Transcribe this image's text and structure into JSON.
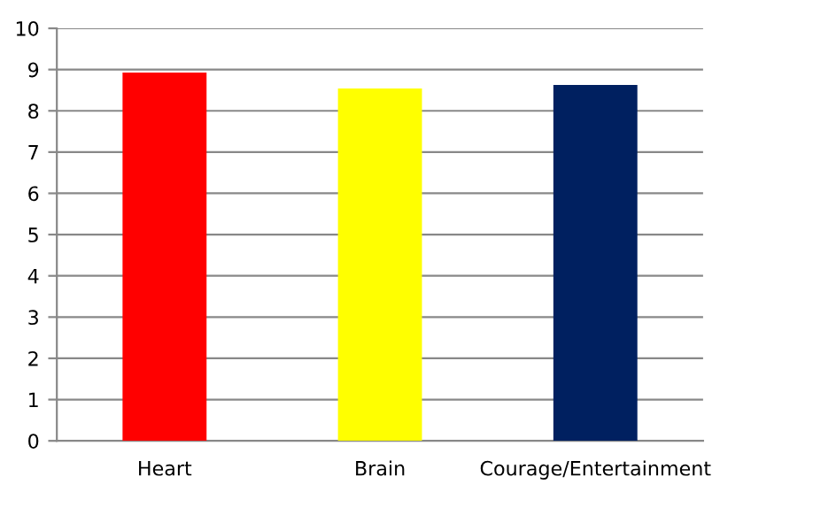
{
  "chart_data": {
    "type": "bar",
    "categories": [
      "Heart",
      "Brain",
      "Courage/Entertainment"
    ],
    "values": [
      8.93,
      8.54,
      8.63
    ],
    "colors": [
      "#ff0000",
      "#ffff00",
      "#002060"
    ],
    "ylim": [
      0,
      10
    ],
    "yticks": [
      0,
      1,
      2,
      3,
      4,
      5,
      6,
      7,
      8,
      9,
      10
    ],
    "grid": "y",
    "legend": false
  }
}
